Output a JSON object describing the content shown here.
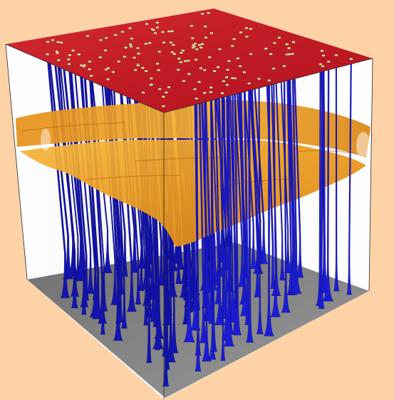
{
  "scene": {
    "background_color": "#fcd2a6",
    "top_plate_color": "#c81e2a",
    "bottom_plate_color": "#7d7d7d",
    "box_wall_color": "#ffffff",
    "interface_color": "#f0a020",
    "column_color": "#1a1acc",
    "column_count": 150,
    "interface_layers": 2
  }
}
